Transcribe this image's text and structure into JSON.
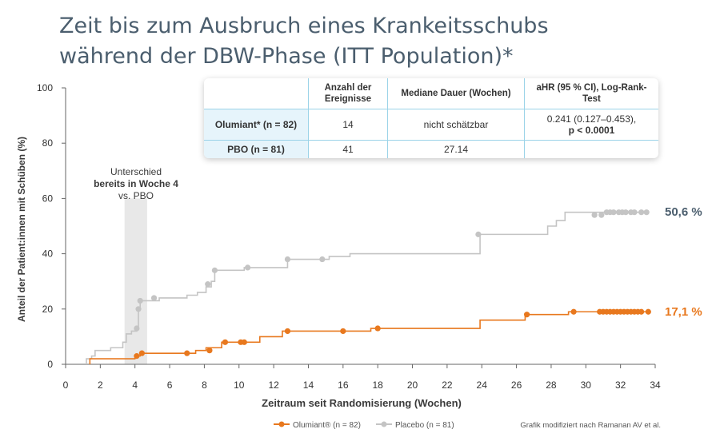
{
  "title_line1": "Zeit bis zum Ausbruch eines Krankeitsschubs",
  "title_line2": "während der DBW-Phase (ITT Population)*",
  "annotation": {
    "line1": "Unterschied",
    "line2": "bereits in Woche 4",
    "line3": "vs. PBO"
  },
  "end_labels": {
    "olumiant": "17,1 %",
    "placebo": "50,6 %"
  },
  "legend": {
    "olumiant": "Olumiant® (n = 82)",
    "placebo": "Placebo (n = 81)"
  },
  "credit": "Grafik modifiziert nach Ramanan AV et al.",
  "table": {
    "headers": [
      "",
      "Anzahl der Ereignisse",
      "Mediane Dauer (Wochen)",
      "aHR (95 % CI), Log-Rank-Test"
    ],
    "rows": [
      {
        "label": "Olumiant* (n = 82)",
        "events": "14",
        "median": "nicht schätzbar",
        "ahr": "0.241 (0.127–0.453),",
        "p": "p < 0.0001"
      },
      {
        "label": "PBO (n = 81)",
        "events": "41",
        "median": "27.14",
        "ahr": "",
        "p": ""
      }
    ]
  },
  "colors": {
    "olumiant": "#e8781e",
    "placebo": "#c4c4c4",
    "title": "#4b5e6e",
    "highlight": "#e8e8e8"
  },
  "chart_data": {
    "type": "line",
    "xlabel": "Zeitraum seit Randomisierung (Wochen)",
    "ylabel": "Anteil der Patient:innen mit Schüben (%)",
    "xlim": [
      0,
      34
    ],
    "ylim": [
      0,
      100
    ],
    "xticks": [
      0,
      2,
      4,
      6,
      8,
      10,
      12,
      14,
      16,
      18,
      20,
      22,
      24,
      26,
      28,
      30,
      32,
      34
    ],
    "yticks": [
      0,
      20,
      40,
      60,
      80,
      100
    ],
    "highlight_band": [
      3.4,
      4.7
    ],
    "series": [
      {
        "name": "Placebo",
        "color": "#c4c4c4",
        "steps": [
          [
            1.2,
            0
          ],
          [
            1.2,
            2
          ],
          [
            1.5,
            3
          ],
          [
            1.7,
            5
          ],
          [
            2.6,
            6
          ],
          [
            3.3,
            8
          ],
          [
            3.5,
            11
          ],
          [
            3.8,
            12
          ],
          [
            4.1,
            13
          ],
          [
            4.2,
            20
          ],
          [
            4.3,
            23
          ],
          [
            5.4,
            24
          ],
          [
            7.0,
            25
          ],
          [
            7.6,
            26
          ],
          [
            8.1,
            28
          ],
          [
            8.4,
            30
          ],
          [
            8.6,
            34
          ],
          [
            10.3,
            35
          ],
          [
            12.8,
            38
          ],
          [
            14.9,
            38
          ],
          [
            15.2,
            39
          ],
          [
            16.4,
            40
          ],
          [
            23.9,
            47
          ],
          [
            27.8,
            50
          ],
          [
            28.3,
            52
          ],
          [
            28.8,
            55
          ],
          [
            33.6,
            55
          ]
        ],
        "censored": [
          [
            4.1,
            13
          ],
          [
            4.2,
            20
          ],
          [
            4.3,
            23
          ],
          [
            5.1,
            24
          ],
          [
            8.2,
            29
          ],
          [
            8.6,
            34
          ],
          [
            10.5,
            35
          ],
          [
            12.8,
            38
          ],
          [
            14.8,
            38
          ],
          [
            23.8,
            47
          ],
          [
            30.5,
            54
          ],
          [
            30.9,
            54
          ],
          [
            31.2,
            55
          ],
          [
            31.4,
            55
          ],
          [
            31.6,
            55
          ],
          [
            31.9,
            55
          ],
          [
            32.1,
            55
          ],
          [
            32.3,
            55
          ],
          [
            32.6,
            55
          ],
          [
            32.8,
            55
          ],
          [
            33.2,
            55
          ],
          [
            33.5,
            55
          ]
        ]
      },
      {
        "name": "Olumiant",
        "color": "#e8781e",
        "steps": [
          [
            1.4,
            0
          ],
          [
            1.4,
            2
          ],
          [
            3.7,
            2
          ],
          [
            4.0,
            3
          ],
          [
            4.3,
            4
          ],
          [
            7.5,
            5
          ],
          [
            8.1,
            6
          ],
          [
            9.0,
            8
          ],
          [
            10.2,
            8
          ],
          [
            11.2,
            10
          ],
          [
            12.5,
            12
          ],
          [
            17.6,
            13
          ],
          [
            18.4,
            13
          ],
          [
            23.9,
            16
          ],
          [
            26.5,
            18
          ],
          [
            29.0,
            19
          ],
          [
            33.6,
            19
          ]
        ],
        "censored": [
          [
            4.1,
            3
          ],
          [
            4.4,
            4
          ],
          [
            7.0,
            4
          ],
          [
            8.3,
            5
          ],
          [
            9.2,
            8
          ],
          [
            10.1,
            8
          ],
          [
            10.3,
            8
          ],
          [
            12.8,
            12
          ],
          [
            16.0,
            12
          ],
          [
            18.0,
            13
          ],
          [
            26.6,
            18
          ],
          [
            29.3,
            19
          ],
          [
            30.8,
            19
          ],
          [
            31.0,
            19
          ],
          [
            31.2,
            19
          ],
          [
            31.4,
            19
          ],
          [
            31.6,
            19
          ],
          [
            31.8,
            19
          ],
          [
            32.0,
            19
          ],
          [
            32.2,
            19
          ],
          [
            32.4,
            19
          ],
          [
            32.6,
            19
          ],
          [
            32.8,
            19
          ],
          [
            33.0,
            19
          ],
          [
            33.2,
            19
          ],
          [
            33.6,
            19
          ]
        ]
      }
    ]
  }
}
